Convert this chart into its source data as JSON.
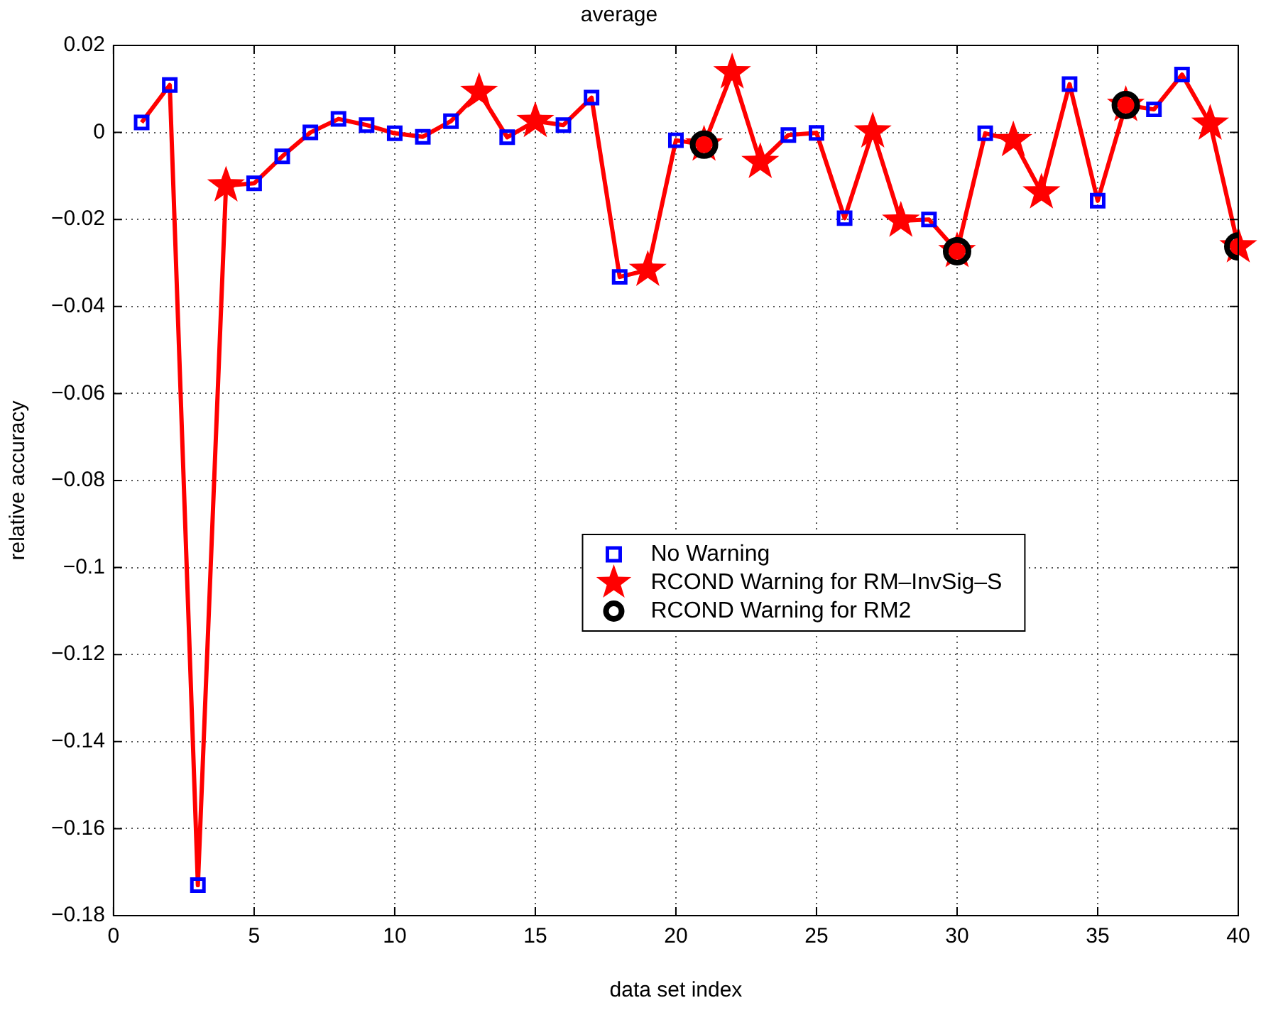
{
  "chart_data": {
    "type": "line",
    "title": "average",
    "xlabel": "data set index",
    "ylabel": "relative accuracy",
    "x": [
      1,
      2,
      3,
      4,
      5,
      6,
      7,
      8,
      9,
      10,
      11,
      12,
      13,
      14,
      15,
      16,
      17,
      18,
      19,
      20,
      21,
      22,
      23,
      24,
      25,
      26,
      27,
      28,
      29,
      30,
      31,
      32,
      33,
      34,
      35,
      36,
      37,
      38,
      39,
      40
    ],
    "series": [
      {
        "type": "line",
        "color": "#ff0000",
        "marker": "none",
        "values": [
          0.0023,
          0.0109,
          -0.173,
          -0.0122,
          -0.0117,
          -0.0055,
          0.0,
          0.0031,
          0.0017,
          -0.0002,
          -0.001,
          0.0026,
          0.0093,
          -0.0011,
          0.0026,
          0.0017,
          0.008,
          -0.0332,
          -0.0316,
          -0.0018,
          -0.0028,
          0.0138,
          -0.0068,
          -0.0006,
          -0.0001,
          -0.0197,
          0.0002,
          -0.0203,
          -0.02,
          -0.0273,
          -0.0002,
          -0.0018,
          -0.0138,
          0.0111,
          -0.0157,
          0.0063,
          0.0053,
          0.0133,
          0.002,
          -0.0262
        ]
      },
      {
        "type": "scatter",
        "name": "No Warning",
        "color": "#0000ff",
        "marker": "square",
        "values": [
          0.0023,
          0.0109,
          -0.173,
          null,
          -0.0117,
          -0.0055,
          0.0,
          0.0031,
          0.0017,
          -0.0002,
          -0.001,
          0.0026,
          null,
          -0.0011,
          null,
          0.0017,
          0.008,
          -0.0332,
          null,
          -0.0018,
          null,
          null,
          null,
          -0.0006,
          -0.0001,
          -0.0197,
          null,
          null,
          -0.02,
          null,
          -0.0002,
          null,
          null,
          0.0111,
          -0.0157,
          null,
          0.0053,
          0.0133,
          null,
          null
        ]
      },
      {
        "type": "scatter",
        "name": "RCOND Warning for RM–InvSig–S",
        "color": "#ff0000",
        "marker": "star",
        "values": [
          null,
          null,
          null,
          -0.0122,
          null,
          null,
          null,
          null,
          null,
          null,
          null,
          null,
          0.0093,
          null,
          0.0026,
          null,
          null,
          null,
          -0.0316,
          null,
          -0.0028,
          0.0138,
          -0.0068,
          null,
          null,
          null,
          0.0002,
          -0.0203,
          null,
          -0.0273,
          null,
          -0.0018,
          -0.0138,
          null,
          null,
          0.0063,
          null,
          null,
          0.002,
          -0.0262
        ]
      },
      {
        "type": "scatter",
        "name": "RCOND Warning for RM2",
        "color": "#000000",
        "marker": "circle",
        "values": [
          null,
          null,
          null,
          null,
          null,
          null,
          null,
          null,
          null,
          null,
          null,
          null,
          null,
          null,
          null,
          null,
          null,
          null,
          null,
          null,
          -0.0028,
          null,
          null,
          null,
          null,
          null,
          null,
          null,
          null,
          -0.0273,
          null,
          null,
          null,
          null,
          null,
          0.0063,
          null,
          null,
          null,
          -0.0262
        ]
      }
    ],
    "xlim": [
      0,
      40
    ],
    "xticks": [
      0,
      5,
      10,
      15,
      20,
      25,
      30,
      35,
      40
    ],
    "ylim": [
      -0.18,
      0.02
    ],
    "yticks": [
      -0.18,
      -0.16,
      -0.14,
      -0.12,
      -0.1,
      -0.08,
      -0.06,
      -0.04,
      -0.02,
      0,
      0.02
    ],
    "grid": true,
    "legend": "center"
  }
}
